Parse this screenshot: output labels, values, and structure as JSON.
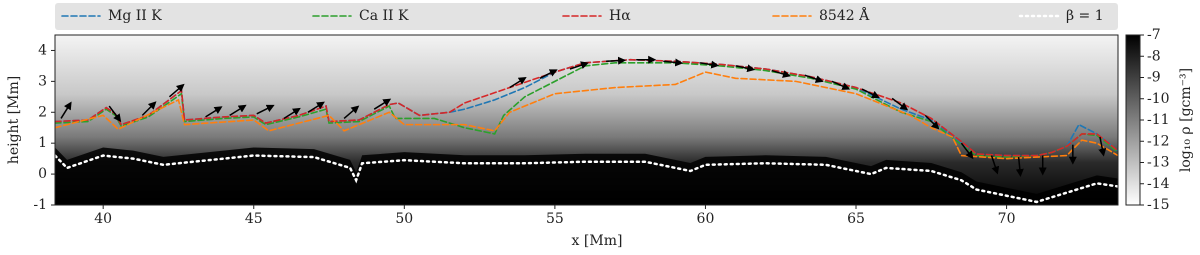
{
  "chart_data": {
    "type": "line",
    "xlabel": "x [Mm]",
    "ylabel": "height [Mm]",
    "xlim": [
      38.4,
      73.7
    ],
    "ylim": [
      -1,
      4.5
    ],
    "xticks": [
      40,
      45,
      50,
      55,
      60,
      65,
      70
    ],
    "yticks": [
      -1,
      0,
      1,
      2,
      3,
      4
    ],
    "colorbar_label": "log₁₀ ρ [gcm⁻³]",
    "clim": [
      -15,
      -7
    ],
    "cticks": [
      -7,
      -8,
      -9,
      -10,
      -11,
      -12,
      -13,
      -14,
      -15
    ],
    "legend": "top",
    "series": [
      {
        "name": "Mg II K",
        "color": "#1f77b4",
        "style": "dashed",
        "x": [
          38.4,
          39.5,
          40.1,
          40.4,
          40.6,
          41.5,
          42.6,
          42.7,
          44,
          45,
          45.4,
          46.5,
          47.4,
          47.5,
          48.5,
          49.5,
          49.8,
          50.5,
          51.5,
          52,
          53,
          54,
          55,
          56,
          57.5,
          59,
          60.5,
          62,
          63.5,
          65,
          66.5,
          67.5,
          68.5,
          69,
          70,
          71,
          71.5,
          72,
          72.4,
          73,
          73.7
        ],
        "values": [
          1.7,
          1.75,
          2.15,
          1.95,
          1.6,
          1.9,
          2.7,
          1.75,
          1.85,
          1.9,
          1.65,
          1.9,
          2.2,
          1.7,
          1.75,
          2.25,
          2.3,
          1.9,
          2.0,
          2.1,
          2.4,
          2.8,
          3.3,
          3.6,
          3.7,
          3.65,
          3.55,
          3.4,
          3.15,
          2.8,
          2.1,
          1.75,
          1.0,
          0.65,
          0.6,
          0.6,
          0.7,
          0.9,
          1.6,
          1.3,
          0.75
        ]
      },
      {
        "name": "Ca II K",
        "color": "#2ca02c",
        "style": "dashed",
        "x": [
          38.4,
          39.5,
          40.1,
          40.4,
          40.6,
          41.5,
          42.6,
          42.7,
          44,
          45,
          45.4,
          46.5,
          47.4,
          47.5,
          48.5,
          49.5,
          49.7,
          51,
          52,
          53,
          53.3,
          54,
          55,
          56,
          57,
          59,
          60.5,
          62,
          63.5,
          65,
          66.5,
          67.5,
          68.5,
          69,
          70,
          71,
          71.5,
          72,
          72.5,
          73,
          73.7
        ],
        "values": [
          1.65,
          1.7,
          2.1,
          1.9,
          1.55,
          1.85,
          2.6,
          1.7,
          1.8,
          1.85,
          1.6,
          1.85,
          2.1,
          1.65,
          1.7,
          2.2,
          1.8,
          1.8,
          1.5,
          1.3,
          1.9,
          2.5,
          3.0,
          3.5,
          3.6,
          3.6,
          3.5,
          3.35,
          3.1,
          2.75,
          2.0,
          1.7,
          0.95,
          0.6,
          0.55,
          0.6,
          0.7,
          0.9,
          1.3,
          1.25,
          0.7
        ]
      },
      {
        "name": "Hα",
        "color": "#d62728",
        "style": "dashed",
        "x": [
          38.4,
          39.5,
          40.1,
          40.4,
          40.6,
          41.5,
          42.6,
          42.7,
          44,
          45,
          45.4,
          46.5,
          47.4,
          47.5,
          48.5,
          49.5,
          49.8,
          50.5,
          51.5,
          52,
          53.5,
          55,
          56,
          57.5,
          59,
          60.5,
          62,
          63.5,
          65,
          66.5,
          67.5,
          68.5,
          69,
          70,
          71,
          71.5,
          72,
          72.5,
          73,
          73.7
        ],
        "values": [
          1.7,
          1.75,
          2.15,
          1.95,
          1.6,
          1.9,
          2.7,
          1.75,
          1.85,
          1.9,
          1.65,
          1.9,
          2.2,
          1.7,
          1.75,
          2.25,
          2.3,
          1.9,
          2.0,
          2.3,
          2.8,
          3.3,
          3.6,
          3.7,
          3.65,
          3.55,
          3.4,
          3.15,
          2.8,
          2.3,
          1.8,
          1.05,
          0.65,
          0.6,
          0.6,
          0.7,
          0.9,
          1.3,
          1.3,
          0.75
        ]
      },
      {
        "name": "8542 Å",
        "color": "#ff7f0e",
        "style": "dashed",
        "x": [
          38.4,
          40,
          40.5,
          42.5,
          42.7,
          45,
          45.5,
          47.5,
          48,
          49.5,
          50,
          52,
          53,
          53.5,
          55,
          57,
          59,
          60,
          61,
          63,
          65,
          66.8,
          67.5,
          68.2,
          68.5,
          70,
          72,
          72.5,
          73,
          73.7
        ],
        "values": [
          1.5,
          1.9,
          1.45,
          2.4,
          1.6,
          1.75,
          1.4,
          1.9,
          1.4,
          2.0,
          1.6,
          1.6,
          1.4,
          2.0,
          2.6,
          2.8,
          2.9,
          3.3,
          3.1,
          3.0,
          2.6,
          1.9,
          1.5,
          1.2,
          0.6,
          0.5,
          0.6,
          1.1,
          1.0,
          0.6
        ]
      },
      {
        "name": "β = 1",
        "color": "#ffffff",
        "style": "dotted",
        "x": [
          38.4,
          38.8,
          40,
          41,
          42,
          43,
          45,
          47,
          48.2,
          48.4,
          48.6,
          50,
          52,
          54,
          56,
          58,
          59.5,
          60,
          62,
          64,
          65.5,
          66,
          67.5,
          68.5,
          69,
          70,
          71,
          72,
          73,
          73.7
        ],
        "values": [
          0.6,
          0.2,
          0.6,
          0.5,
          0.3,
          0.4,
          0.6,
          0.55,
          0.2,
          -0.2,
          0.35,
          0.45,
          0.35,
          0.35,
          0.4,
          0.4,
          0.1,
          0.3,
          0.35,
          0.3,
          0.0,
          0.2,
          0.1,
          -0.2,
          -0.5,
          -0.7,
          -0.9,
          -0.6,
          -0.3,
          -0.4
        ]
      }
    ],
    "vectors": {
      "x": [
        38.6,
        40.2,
        41.3,
        42.2,
        43.4,
        44.2,
        45.1,
        46,
        46.8,
        48,
        49,
        53.5,
        54.5,
        55.5,
        56.7,
        57.7,
        58.6,
        59.8,
        61,
        62.2,
        63.3,
        64.2,
        65.2,
        66.2,
        67.3,
        68.5,
        69.5,
        70.4,
        71.2,
        72.2,
        73.1
      ],
      "y": [
        1.8,
        2.2,
        1.9,
        2.5,
        1.85,
        1.9,
        1.95,
        1.8,
        2.0,
        1.8,
        2.1,
        2.8,
        3.1,
        3.4,
        3.65,
        3.7,
        3.65,
        3.6,
        3.5,
        3.35,
        3.2,
        3.0,
        2.75,
        2.45,
        1.9,
        1.0,
        0.6,
        0.55,
        0.6,
        0.95,
        1.2
      ],
      "u": [
        0.5,
        0.6,
        0.7,
        0.7,
        0.8,
        0.8,
        0.8,
        0.8,
        0.8,
        0.7,
        0.8,
        0.8,
        0.8,
        0.9,
        1,
        1,
        1,
        1,
        1,
        1,
        1,
        0.9,
        0.9,
        0.8,
        0.7,
        0.6,
        0.3,
        0.1,
        0,
        0,
        0.2
      ],
      "v": [
        0.8,
        -0.8,
        0.7,
        0.6,
        0.5,
        0.5,
        0.4,
        0.5,
        0.5,
        0.6,
        0.5,
        0.5,
        0.4,
        0.3,
        0.05,
        0,
        -0.1,
        -0.15,
        -0.2,
        -0.3,
        -0.35,
        -0.4,
        -0.45,
        -0.6,
        -0.7,
        -0.8,
        -0.9,
        -1,
        -1,
        -1,
        -1
      ]
    }
  }
}
